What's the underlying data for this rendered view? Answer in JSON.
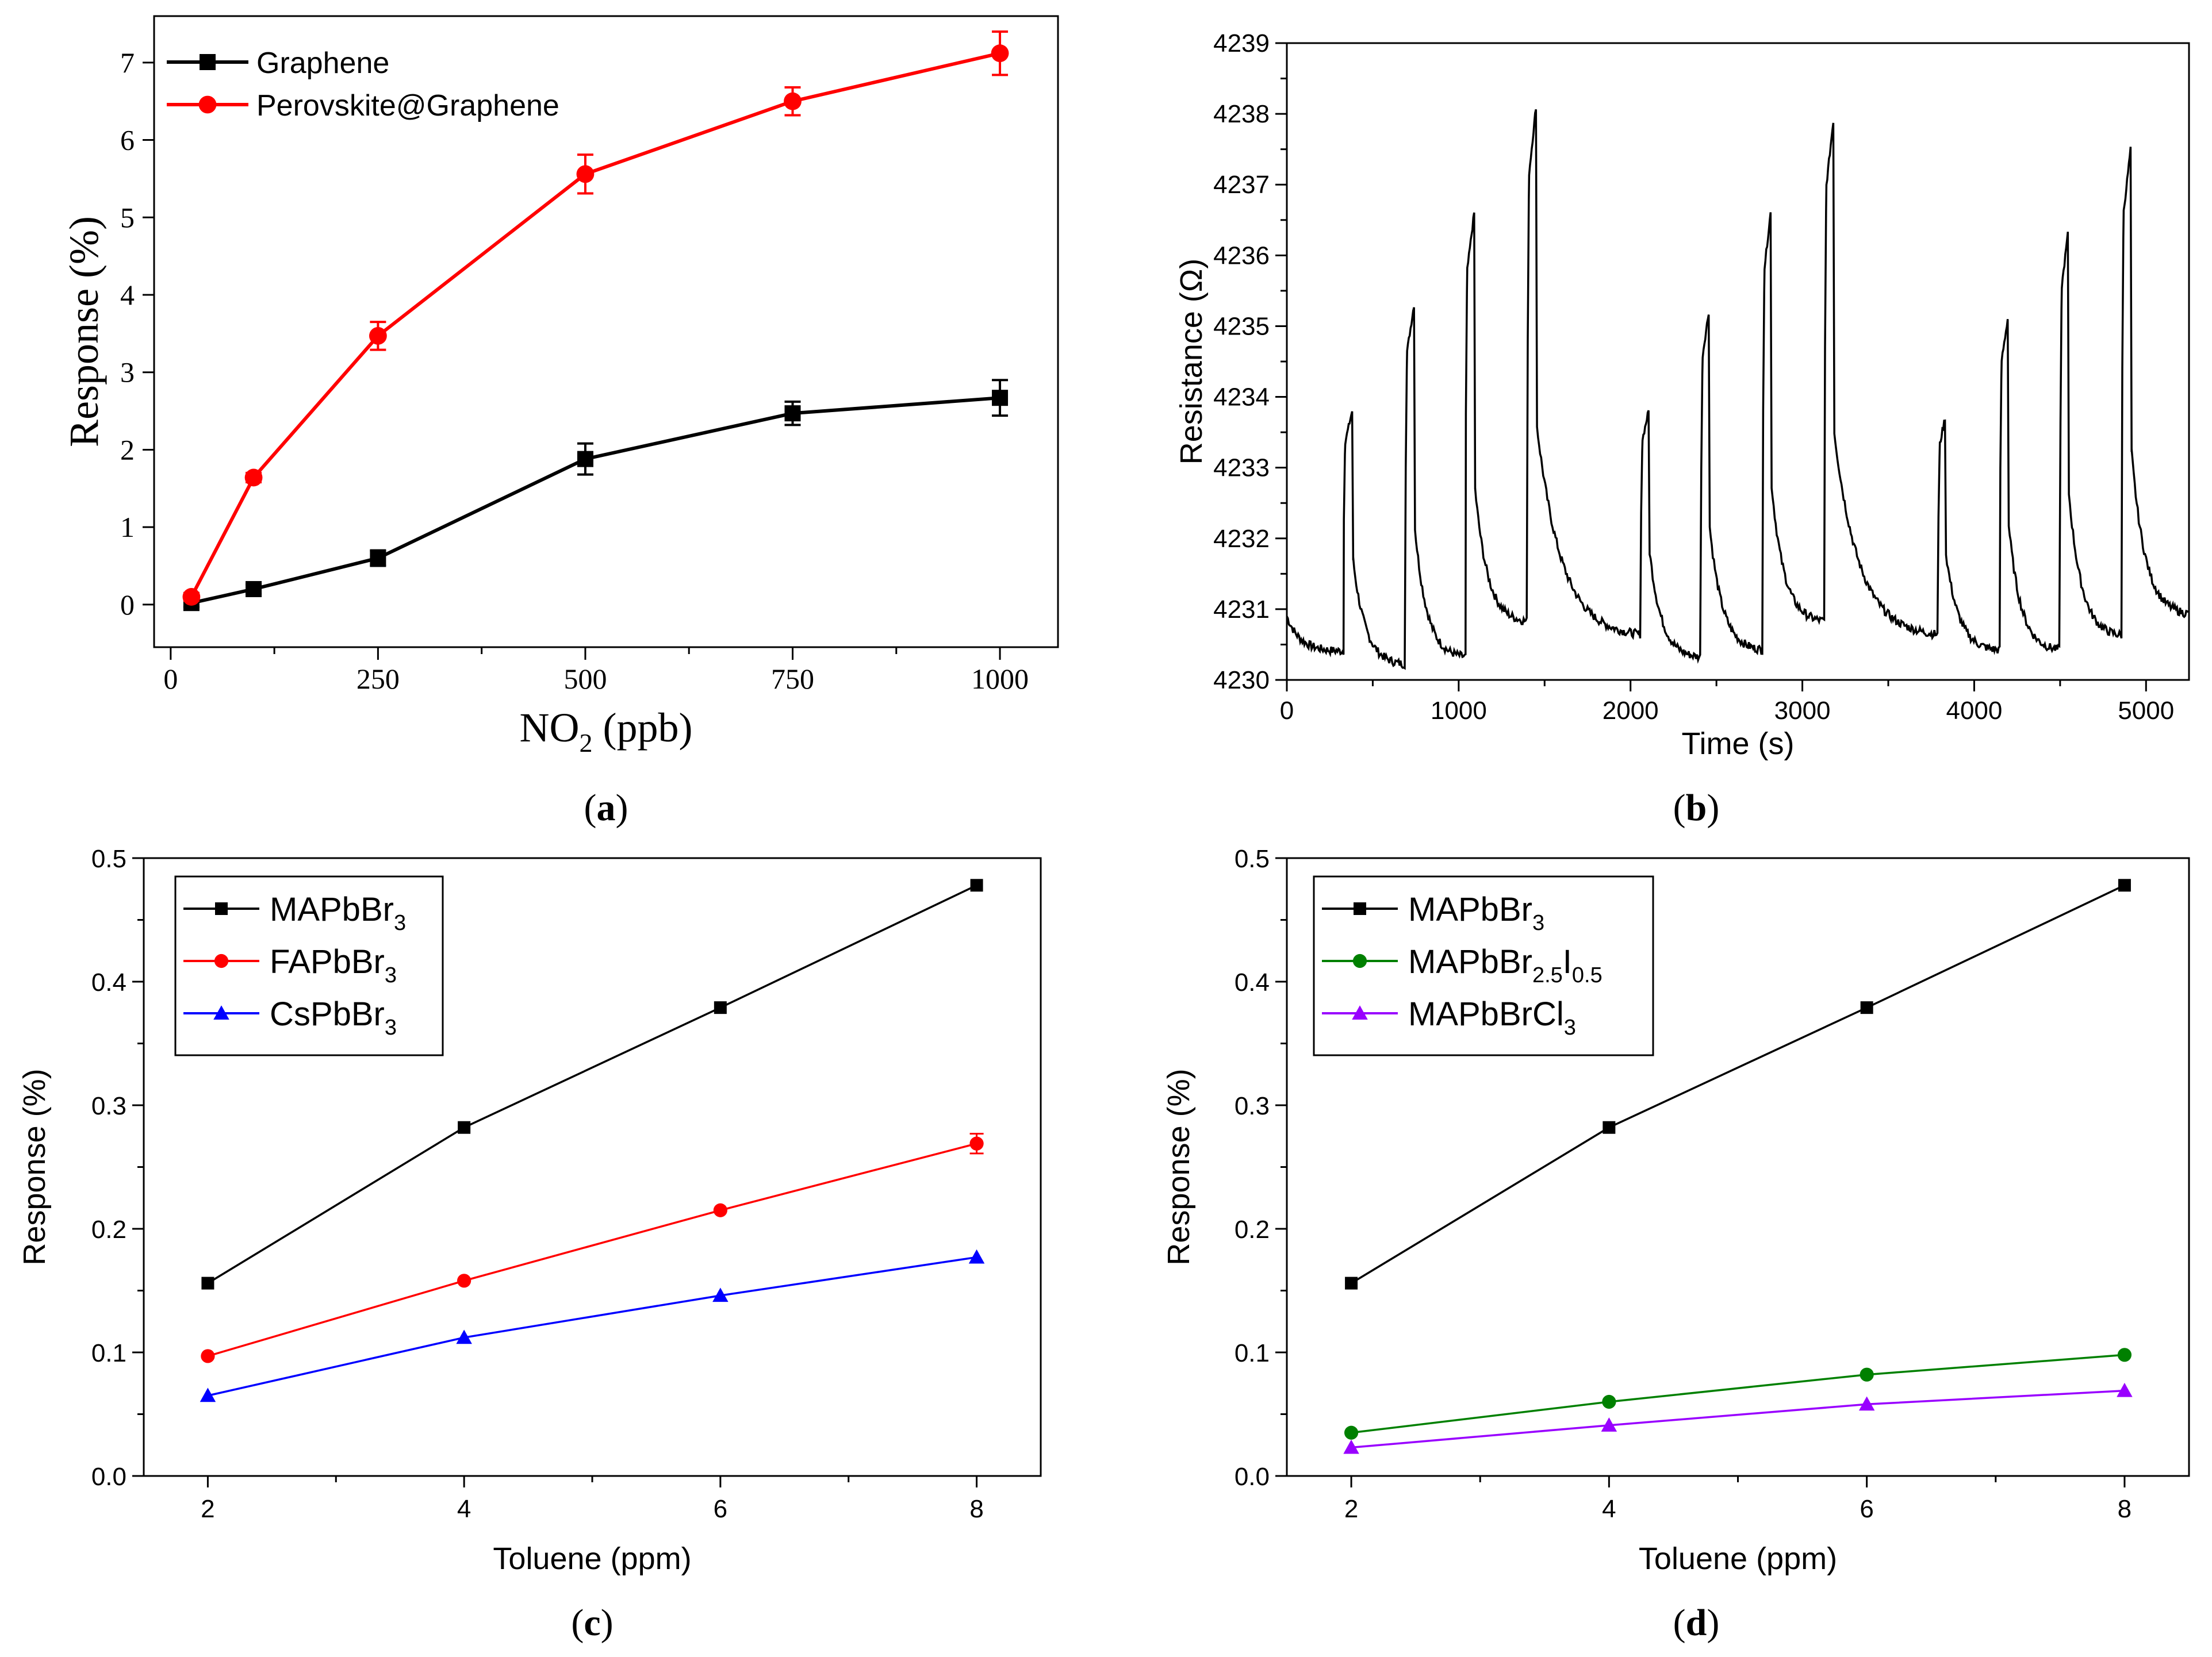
{
  "chart_data": [
    {
      "panel": "(a)",
      "label_open": "(",
      "label_letter": "a",
      "label_close": ")",
      "type": "line",
      "xlabel_main": "NO",
      "xlabel_sub": "2",
      "xlabel_rest": " (ppb)",
      "ylabel": "Response (%)",
      "xlim": [
        -20,
        1070
      ],
      "ylim": [
        -0.55,
        7.6
      ],
      "xticks": [
        0,
        250,
        500,
        750,
        1000
      ],
      "yticks": [
        0,
        1,
        2,
        3,
        4,
        5,
        6,
        7
      ],
      "series": [
        {
          "name": "Graphene",
          "color": "#000000",
          "marker": "square",
          "x": [
            25,
            100,
            250,
            500,
            750,
            1000
          ],
          "y": [
            0.02,
            0.2,
            0.6,
            1.88,
            2.47,
            2.67
          ],
          "err": [
            0.05,
            0.06,
            0.1,
            0.2,
            0.15,
            0.23
          ]
        },
        {
          "name": "Perovskite@Graphene",
          "color": "#ff0000",
          "marker": "circle",
          "x": [
            25,
            100,
            250,
            500,
            750,
            1000
          ],
          "y": [
            0.1,
            1.64,
            3.47,
            5.56,
            6.5,
            7.12
          ],
          "err": [
            0.05,
            0.06,
            0.18,
            0.25,
            0.18,
            0.28
          ]
        }
      ]
    },
    {
      "panel": "(b)",
      "label_open": "(",
      "label_letter": "b",
      "label_close": ")",
      "type": "line",
      "xlabel": "Time (s)",
      "ylabel": "Resistance (Ω)",
      "xlim": [
        0,
        5250
      ],
      "ylim": [
        4230,
        4239
      ],
      "xticks": [
        0,
        1000,
        2000,
        3000,
        4000,
        5000
      ],
      "yticks": [
        4230,
        4231,
        4232,
        4233,
        4234,
        4235,
        4236,
        4237,
        4238,
        4239
      ],
      "series": [
        {
          "name": "Resistance",
          "color": "#000000",
          "baseline_start": 4230.9,
          "pulses": [
            {
              "start": 330,
              "end": 380,
              "peak": 4233.8,
              "floor": 4230.4
            },
            {
              "start": 690,
              "end": 740,
              "peak": 4235.3,
              "floor": 4230.2
            },
            {
              "start": 1040,
              "end": 1090,
              "peak": 4236.6,
              "floor": 4230.3
            },
            {
              "start": 1400,
              "end": 1450,
              "peak": 4238.1,
              "floor": 4230.8
            },
            {
              "start": 2060,
              "end": 2105,
              "peak": 4233.8,
              "floor": 4230.6
            },
            {
              "start": 2410,
              "end": 2455,
              "peak": 4235.2,
              "floor": 4230.3
            },
            {
              "start": 2770,
              "end": 2815,
              "peak": 4236.6,
              "floor": 4230.4
            },
            {
              "start": 3130,
              "end": 3180,
              "peak": 4237.9,
              "floor": 4230.8
            },
            {
              "start": 3790,
              "end": 3830,
              "peak": 4233.7,
              "floor": 4230.6
            },
            {
              "start": 4150,
              "end": 4195,
              "peak": 4235.1,
              "floor": 4230.4
            },
            {
              "start": 4500,
              "end": 4545,
              "peak": 4236.3,
              "floor": 4230.4
            },
            {
              "start": 4860,
              "end": 4910,
              "peak": 4237.5,
              "floor": 4230.6
            }
          ],
          "end_value": 4230.9
        }
      ]
    },
    {
      "panel": "(c)",
      "label_open": "(",
      "label_letter": "c",
      "label_close": ")",
      "type": "line",
      "xlabel": "Toluene (ppm)",
      "ylabel": "Response (%)",
      "xlim": [
        1.5,
        8.5
      ],
      "ylim": [
        0,
        0.5
      ],
      "xticks": [
        2,
        4,
        6,
        8
      ],
      "yticks": [
        0.0,
        0.1,
        0.2,
        0.3,
        0.4,
        0.5
      ],
      "ytick_labels": [
        "0.0",
        "0.1",
        "0.2",
        "0.3",
        "0.4",
        "0.5"
      ],
      "series": [
        {
          "name_base": "MAPbBr",
          "name_sub": "3",
          "name_sub2": "",
          "name_tail": "",
          "color": "#000000",
          "marker": "square",
          "x": [
            2,
            4,
            6,
            8
          ],
          "y": [
            0.156,
            0.282,
            0.379,
            0.478
          ],
          "err": [
            0,
            0,
            0,
            0
          ]
        },
        {
          "name_base": "FAPbBr",
          "name_sub": "3",
          "name_sub2": "",
          "name_tail": "",
          "color": "#ff0000",
          "marker": "circle",
          "x": [
            2,
            4,
            6,
            8
          ],
          "y": [
            0.097,
            0.158,
            0.215,
            0.269
          ],
          "err": [
            0,
            0,
            0,
            0.008
          ]
        },
        {
          "name_base": "CsPbBr",
          "name_sub": "3",
          "name_sub2": "",
          "name_tail": "",
          "color": "#0000ff",
          "marker": "triangle",
          "x": [
            2,
            4,
            6,
            8
          ],
          "y": [
            0.065,
            0.112,
            0.146,
            0.177
          ],
          "err": [
            0,
            0,
            0,
            0
          ]
        }
      ]
    },
    {
      "panel": "(d)",
      "label_open": "(",
      "label_letter": "d",
      "label_close": ")",
      "type": "line",
      "xlabel": "Toluene (ppm)",
      "ylabel": "Response (%)",
      "xlim": [
        1.5,
        8.5
      ],
      "ylim": [
        0,
        0.5
      ],
      "xticks": [
        2,
        4,
        6,
        8
      ],
      "yticks": [
        0.0,
        0.1,
        0.2,
        0.3,
        0.4,
        0.5
      ],
      "ytick_labels": [
        "0.0",
        "0.1",
        "0.2",
        "0.3",
        "0.4",
        "0.5"
      ],
      "series": [
        {
          "name_base": "MAPbBr",
          "name_sub": "3",
          "name_sub2": "",
          "name_tail": "",
          "color": "#000000",
          "marker": "square",
          "x": [
            2,
            4,
            6,
            8
          ],
          "y": [
            0.156,
            0.282,
            0.379,
            0.478
          ],
          "err": [
            0,
            0,
            0,
            0
          ]
        },
        {
          "name_base": "MAPbBr",
          "name_sub": "2.5",
          "name_tail": "I",
          "name_sub2": "0.5",
          "color": "#008000",
          "marker": "circle",
          "x": [
            2,
            4,
            6,
            8
          ],
          "y": [
            0.035,
            0.06,
            0.082,
            0.098
          ],
          "err": [
            0,
            0,
            0,
            0
          ]
        },
        {
          "name_base": "MAPbBrCl",
          "name_sub": "3",
          "name_sub2": "",
          "name_tail": "",
          "color": "#9900ff",
          "marker": "triangle",
          "x": [
            2,
            4,
            6,
            8
          ],
          "y": [
            0.023,
            0.041,
            0.058,
            0.069
          ],
          "err": [
            0,
            0,
            0,
            0
          ]
        }
      ]
    }
  ]
}
